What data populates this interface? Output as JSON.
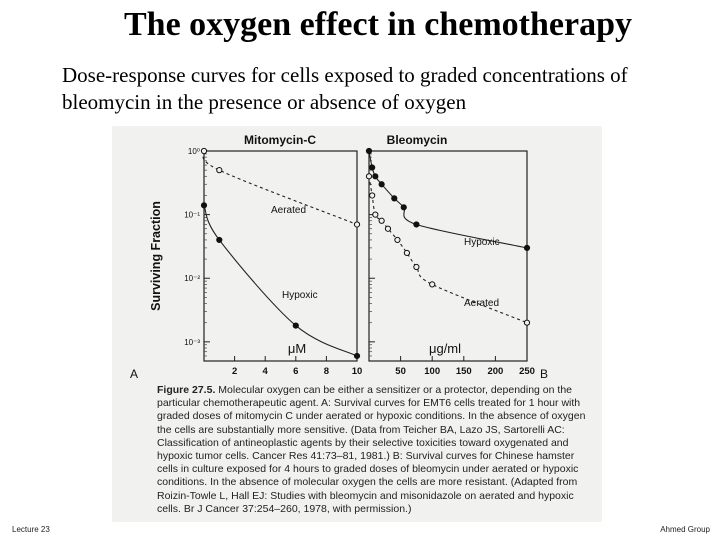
{
  "slide": {
    "title": "The oxygen effect in chemotherapy",
    "subtitle": "Dose-response curves for cells exposed to graded concentrations of bleomycin in the presence or absence of oxygen",
    "footer_left": "Lecture 23",
    "footer_right": "Ahmed Group"
  },
  "figure": {
    "ylabel": "Surviving Fraction",
    "yticks": [
      "10⁰",
      "10⁻¹",
      "10⁻²",
      "10⁻³"
    ],
    "caption_lead": "Figure 27.5.",
    "caption_body": "Molecular oxygen can be either a sensitizer or a protector, depending on the particular chemotherapeutic agent. A: Survival curves for EMT6 cells treated for 1 hour with graded doses of mitomycin C under aerated or hypoxic conditions. In the absence of oxygen the cells are substantially more sensitive. (Data from Teicher BA, Lazo JS, Sartorelli AC: Classification of antineoplastic agents by their selective toxicities toward oxygenated and hypoxic tumor cells. Cancer Res 41:73–81, 1981.) B: Survival curves for Chinese hamster cells in culture exposed for 4 hours to graded doses of bleomycin under aerated or hypoxic conditions. In the absence of molecular oxygen the cells are more resistant. (Adapted from Roizin-Towle L, Hall EJ: Studies with bleomycin and misonidazole on aerated and hypoxic cells. Br J Cancer 37:254–260, 1978, with permission.)"
  },
  "chart_data": [
    {
      "type": "line",
      "panel": "A",
      "title": "Mitomycin-C",
      "xlabel": "μM",
      "ylabel": "Surviving Fraction",
      "y_scale": "log",
      "xlim": [
        0,
        10
      ],
      "ylim": [
        0.0005,
        1
      ],
      "xticks": [
        2,
        4,
        6,
        8,
        10
      ],
      "grid": false,
      "series": [
        {
          "name": "Aerated",
          "marker": "open",
          "line": "dashed",
          "x": [
            0,
            1,
            10
          ],
          "y": [
            1,
            0.5,
            0.07
          ]
        },
        {
          "name": "Hypoxic",
          "marker": "filled",
          "line": "solid",
          "x": [
            0,
            1,
            6,
            10
          ],
          "y": [
            0.14,
            0.04,
            0.0018,
            0.0006
          ]
        }
      ]
    },
    {
      "type": "line",
      "panel": "B",
      "title": "Bleomycin",
      "xlabel": "μg/ml",
      "ylabel": "Surviving Fraction",
      "y_scale": "log",
      "xlim": [
        0,
        250
      ],
      "ylim": [
        0.0005,
        1
      ],
      "xticks": [
        50,
        100,
        150,
        200,
        250
      ],
      "grid": false,
      "series": [
        {
          "name": "Hypoxic",
          "marker": "filled",
          "line": "solid",
          "x": [
            0,
            5,
            10,
            20,
            40,
            55,
            75,
            250
          ],
          "y": [
            1,
            0.55,
            0.4,
            0.3,
            0.18,
            0.13,
            0.07,
            0.03
          ]
        },
        {
          "name": "Aerated",
          "marker": "open",
          "line": "dashed",
          "x": [
            0,
            5,
            10,
            20,
            30,
            45,
            60,
            75,
            100,
            250
          ],
          "y": [
            0.4,
            0.2,
            0.1,
            0.08,
            0.06,
            0.04,
            0.025,
            0.015,
            0.008,
            0.002
          ]
        }
      ]
    }
  ]
}
